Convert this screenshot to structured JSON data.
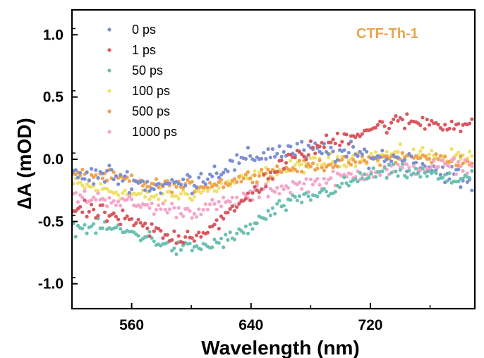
{
  "chart_data": {
    "type": "scatter",
    "title": "",
    "annotation": "CTF-Th-1",
    "annotation_color": "#E8A64E",
    "xlabel": "Wavelength (nm)",
    "ylabel": "∆A (mOD)",
    "xlim": [
      520,
      790
    ],
    "ylim": [
      -1.2,
      1.2
    ],
    "x_ticks": [
      560,
      640,
      720
    ],
    "y_ticks": [
      1.0,
      0.5,
      0.0,
      -0.5,
      -1.0
    ],
    "y_tick_labels": [
      "1.0",
      "0.5",
      "0.0",
      "-0.5",
      "-1.0"
    ],
    "legend_position": "top-left",
    "x_range": [
      521,
      789
    ],
    "x_step": 1.5,
    "series": [
      {
        "name": "0 ps",
        "color": "#7C8FD0",
        "anchors": [
          [
            521,
            -0.15
          ],
          [
            545,
            -0.12
          ],
          [
            575,
            -0.22
          ],
          [
            600,
            -0.18
          ],
          [
            620,
            -0.08
          ],
          [
            650,
            0.05
          ],
          [
            665,
            0.07
          ],
          [
            690,
            0.06
          ],
          [
            720,
            0.03
          ],
          [
            750,
            -0.02
          ],
          [
            775,
            -0.12
          ],
          [
            789,
            -0.22
          ]
        ],
        "noise": 0.07
      },
      {
        "name": "1 ps",
        "color": "#D9575E",
        "anchors": [
          [
            521,
            -0.4
          ],
          [
            545,
            -0.45
          ],
          [
            570,
            -0.55
          ],
          [
            585,
            -0.63
          ],
          [
            605,
            -0.6
          ],
          [
            625,
            -0.45
          ],
          [
            645,
            -0.22
          ],
          [
            660,
            -0.05
          ],
          [
            675,
            0.05
          ],
          [
            695,
            0.15
          ],
          [
            720,
            0.25
          ],
          [
            740,
            0.3
          ],
          [
            760,
            0.3
          ],
          [
            775,
            0.28
          ],
          [
            789,
            0.25
          ]
        ],
        "noise": 0.06
      },
      {
        "name": "50 ps",
        "color": "#6CC0B2",
        "anchors": [
          [
            521,
            -0.55
          ],
          [
            545,
            -0.55
          ],
          [
            570,
            -0.62
          ],
          [
            590,
            -0.72
          ],
          [
            610,
            -0.7
          ],
          [
            630,
            -0.62
          ],
          [
            645,
            -0.5
          ],
          [
            660,
            -0.38
          ],
          [
            680,
            -0.3
          ],
          [
            700,
            -0.22
          ],
          [
            720,
            -0.12
          ],
          [
            740,
            -0.1
          ],
          [
            760,
            -0.12
          ],
          [
            775,
            -0.18
          ],
          [
            789,
            -0.1
          ]
        ],
        "noise": 0.05
      },
      {
        "name": "100 ps",
        "color": "#F0E06A",
        "anchors": [
          [
            521,
            -0.2
          ],
          [
            545,
            -0.25
          ],
          [
            570,
            -0.3
          ],
          [
            600,
            -0.28
          ],
          [
            625,
            -0.2
          ],
          [
            650,
            -0.12
          ],
          [
            675,
            -0.05
          ],
          [
            700,
            0.0
          ],
          [
            720,
            0.02
          ],
          [
            745,
            0.05
          ],
          [
            770,
            0.03
          ],
          [
            789,
            0.02
          ]
        ],
        "noise": 0.05
      },
      {
        "name": "500 ps",
        "color": "#F0A24E",
        "anchors": [
          [
            521,
            -0.12
          ],
          [
            545,
            -0.14
          ],
          [
            570,
            -0.2
          ],
          [
            600,
            -0.22
          ],
          [
            625,
            -0.18
          ],
          [
            650,
            -0.1
          ],
          [
            675,
            -0.06
          ],
          [
            700,
            -0.03
          ],
          [
            720,
            0.0
          ],
          [
            745,
            0.02
          ],
          [
            770,
            0.0
          ],
          [
            789,
            -0.02
          ]
        ],
        "noise": 0.04
      },
      {
        "name": "1000 ps",
        "color": "#F4A6C8",
        "anchors": [
          [
            521,
            -0.3
          ],
          [
            545,
            -0.32
          ],
          [
            570,
            -0.38
          ],
          [
            600,
            -0.42
          ],
          [
            625,
            -0.35
          ],
          [
            650,
            -0.25
          ],
          [
            675,
            -0.2
          ],
          [
            700,
            -0.15
          ],
          [
            720,
            -0.1
          ],
          [
            745,
            -0.08
          ],
          [
            770,
            -0.05
          ],
          [
            789,
            -0.05
          ]
        ],
        "noise": 0.05
      }
    ]
  }
}
